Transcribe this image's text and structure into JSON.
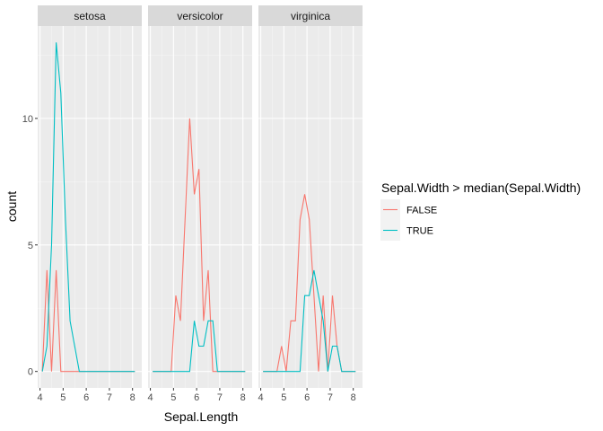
{
  "chart_data": {
    "type": "line",
    "stat": "frequency polygon",
    "facet_var": "Species",
    "facets": [
      "setosa",
      "versicolor",
      "virginica"
    ],
    "xlabel": "Sepal.Length",
    "ylabel": "count",
    "xlim": [
      3.9,
      8.4
    ],
    "ylim": [
      -0.65,
      13.65
    ],
    "x_ticks": [
      4,
      5,
      6,
      7,
      8
    ],
    "y_ticks": [
      0,
      5,
      10
    ],
    "grid": true,
    "legend": {
      "title": "Sepal.Width > median(Sepal.Width)",
      "position": "right",
      "entries": [
        {
          "label": "FALSE",
          "color": "#F8766D"
        },
        {
          "label": "TRUE",
          "color": "#00BFC4"
        }
      ]
    },
    "x": [
      4.1,
      4.3,
      4.5,
      4.7,
      4.9,
      5.1,
      5.3,
      5.5,
      5.7,
      5.9,
      6.1,
      6.3,
      6.5,
      6.7,
      6.9,
      7.1,
      7.3,
      7.5,
      7.7,
      7.9,
      8.1
    ],
    "panels": [
      {
        "facet": "setosa",
        "series": [
          {
            "name": "FALSE",
            "color": "#F8766D",
            "values": [
              0,
              4,
              0,
              4,
              0,
              0,
              0,
              0,
              0,
              0,
              0,
              0,
              0,
              0,
              0,
              0,
              0,
              0,
              0,
              0,
              0
            ]
          },
          {
            "name": "TRUE",
            "color": "#00BFC4",
            "values": [
              0,
              1,
              5,
              13,
              11,
              6,
              2,
              1,
              0,
              0,
              0,
              0,
              0,
              0,
              0,
              0,
              0,
              0,
              0,
              0,
              0
            ]
          }
        ]
      },
      {
        "facet": "versicolor",
        "series": [
          {
            "name": "FALSE",
            "color": "#F8766D",
            "values": [
              0,
              0,
              0,
              0,
              0,
              3,
              2,
              6,
              10,
              7,
              8,
              2,
              4,
              0,
              0,
              0,
              0,
              0,
              0,
              0,
              0
            ]
          },
          {
            "name": "TRUE",
            "color": "#00BFC4",
            "values": [
              0,
              0,
              0,
              0,
              0,
              0,
              0,
              0,
              0,
              2,
              1,
              1,
              2,
              2,
              0,
              0,
              0,
              0,
              0,
              0,
              0
            ]
          }
        ]
      },
      {
        "facet": "virginica",
        "series": [
          {
            "name": "FALSE",
            "color": "#F8766D",
            "values": [
              0,
              0,
              0,
              0,
              1,
              0,
              2,
              2,
              6,
              7,
              6,
              3,
              0,
              3,
              0,
              3,
              1,
              0,
              0,
              0,
              0
            ]
          },
          {
            "name": "TRUE",
            "color": "#00BFC4",
            "values": [
              0,
              0,
              0,
              0,
              0,
              0,
              0,
              0,
              0,
              3,
              3,
              4,
              3,
              2,
              0,
              1,
              1,
              0,
              0,
              0,
              0
            ]
          }
        ]
      }
    ]
  }
}
